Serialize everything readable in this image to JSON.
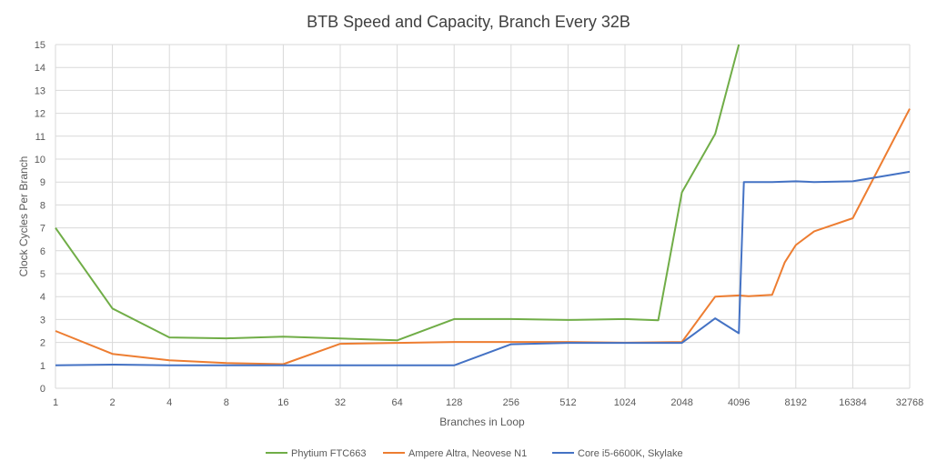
{
  "chart_data": {
    "type": "line",
    "title": "BTB Speed and Capacity, Branch Every 32B",
    "xlabel": "Branches in Loop",
    "ylabel": "Clock Cycles Per Branch",
    "x_scale": "log2",
    "x_ticks": [
      1,
      2,
      4,
      8,
      16,
      32,
      64,
      128,
      256,
      512,
      1024,
      2048,
      4096,
      8192,
      16384,
      32768
    ],
    "x_tick_labels": [
      "1",
      "2",
      "4",
      "8",
      "16",
      "32",
      "64",
      "128",
      "256",
      "512",
      "1024",
      "2048",
      "4096",
      "8192",
      "16384",
      "32768"
    ],
    "xlim": [
      1,
      32768
    ],
    "ylim": [
      0,
      15
    ],
    "y_ticks": [
      0,
      1,
      2,
      3,
      4,
      5,
      6,
      7,
      8,
      9,
      10,
      11,
      12,
      13,
      14,
      15
    ],
    "grid": true,
    "legend_position": "bottom",
    "series": [
      {
        "name": "Phytium FTC663",
        "color": "#70ad47",
        "x": [
          1,
          2,
          4,
          8,
          16,
          32,
          64,
          128,
          256,
          512,
          1024,
          1536,
          2048,
          3072,
          4096
        ],
        "y": [
          7.0,
          3.48,
          2.22,
          2.18,
          2.25,
          2.17,
          2.09,
          3.02,
          3.02,
          2.98,
          3.02,
          2.97,
          8.55,
          11.1,
          15.0
        ]
      },
      {
        "name": "Ampere Altra, Neovese N1",
        "color": "#ed7d31",
        "x": [
          1,
          2,
          4,
          8,
          16,
          32,
          64,
          128,
          256,
          512,
          1024,
          2048,
          3072,
          4096,
          4608,
          6144,
          7168,
          8192,
          10240,
          16384,
          32768
        ],
        "y": [
          2.5,
          1.5,
          1.22,
          1.1,
          1.05,
          1.94,
          1.98,
          2.02,
          2.02,
          2.02,
          1.99,
          2.02,
          4.0,
          4.05,
          4.02,
          4.08,
          5.5,
          6.25,
          6.85,
          7.42,
          12.2
        ]
      },
      {
        "name": "Core i5-6600K, Skylake",
        "color": "#4472c4",
        "x": [
          1,
          2,
          4,
          8,
          16,
          32,
          64,
          128,
          256,
          512,
          1024,
          2048,
          3072,
          4096,
          4352,
          6144,
          8192,
          10240,
          16384,
          32768
        ],
        "y": [
          1.0,
          1.03,
          1.0,
          1.0,
          1.0,
          1.0,
          1.0,
          1.0,
          1.92,
          1.98,
          1.98,
          1.98,
          3.05,
          2.4,
          9.0,
          9.0,
          9.03,
          9.0,
          9.03,
          9.45
        ]
      }
    ]
  }
}
